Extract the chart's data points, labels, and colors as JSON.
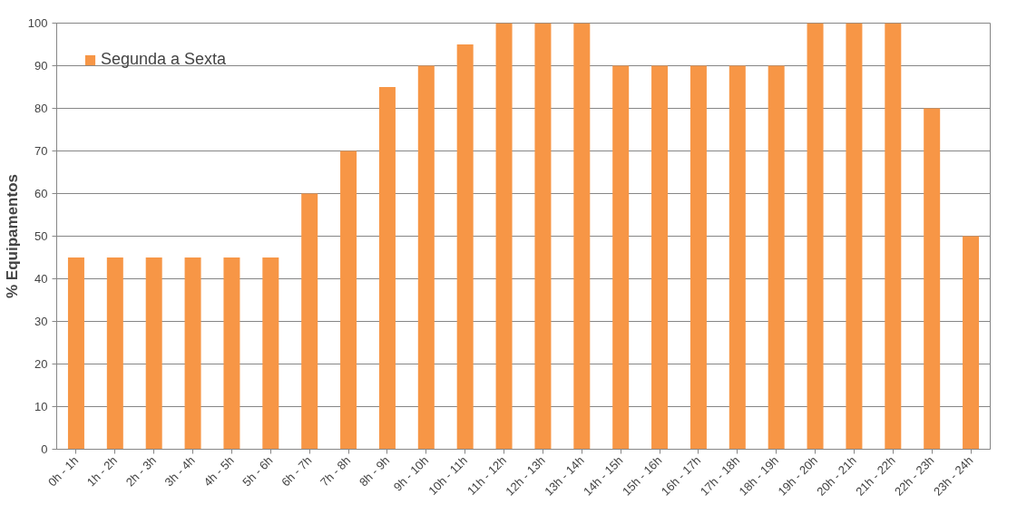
{
  "chart_data": {
    "type": "bar",
    "ylabel": "% Equipamentos",
    "categories": [
      "0h - 1h",
      "1h - 2h",
      "2h - 3h",
      "3h - 4h",
      "4h - 5h",
      "5h - 6h",
      "6h - 7h",
      "7h - 8h",
      "8h - 9h",
      "9h - 10h",
      "10h - 11h",
      "11h - 12h",
      "12h - 13h",
      "13h - 14h",
      "14h - 15h",
      "15h - 16h",
      "16h - 17h",
      "17h - 18h",
      "18h - 19h",
      "19h - 20h",
      "20h - 21h",
      "21h - 22h",
      "22h - 23h",
      "23h - 24h"
    ],
    "series": [
      {
        "name": "Segunda a Sexta",
        "color": "#f79646",
        "values": [
          45,
          45,
          45,
          45,
          45,
          45,
          60,
          70,
          85,
          90,
          95,
          100,
          100,
          100,
          90,
          90,
          90,
          90,
          90,
          100,
          100,
          100,
          80,
          50
        ]
      }
    ],
    "ylim": [
      0,
      100
    ],
    "yticks": [
      0,
      10,
      20,
      30,
      40,
      50,
      60,
      70,
      80,
      90,
      100
    ],
    "grid": "y",
    "legend": "top left"
  }
}
